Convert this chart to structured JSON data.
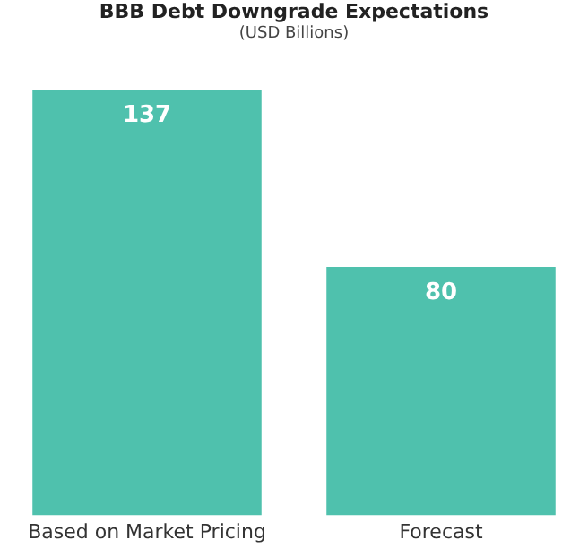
{
  "chart_data": {
    "type": "bar",
    "title": "BBB Debt Downgrade Expectations",
    "subtitle": "(USD Billions)",
    "categories": [
      "Based on Market Pricing",
      "Forecast"
    ],
    "values": [
      137,
      80
    ],
    "color": "#4fc1ad",
    "data_labels": true,
    "grid": false,
    "legend": false
  }
}
